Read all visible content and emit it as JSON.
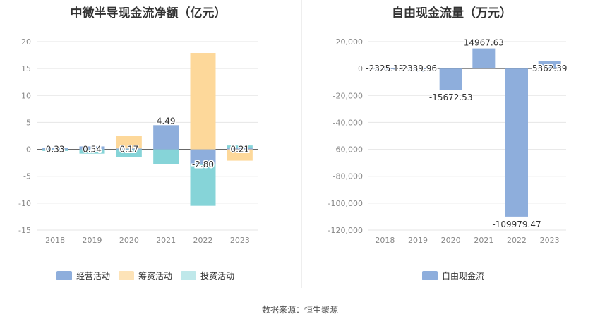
{
  "source_text": "数据来源：恒生聚源",
  "chart_data": [
    {
      "type": "bar",
      "stacked": true,
      "title": "中微半导现金流净额（亿元）",
      "categories": [
        "2018",
        "2019",
        "2020",
        "2021",
        "2022",
        "2023"
      ],
      "ylim": [
        -15,
        20
      ],
      "yticks": [
        -15,
        -10,
        -5,
        0,
        5,
        10,
        15,
        20
      ],
      "grid": true,
      "legend_position": "bottom",
      "series": [
        {
          "name": "经营活动",
          "color": "#8eaedc",
          "values": [
            0.33,
            0.54,
            0.17,
            4.49,
            -2.8,
            0.21
          ]
        },
        {
          "name": "筹资活动",
          "color": "#fdd89a",
          "values": [
            0.0,
            0.0,
            2.3,
            0.0,
            17.9,
            -2.1
          ]
        },
        {
          "name": "投资活动",
          "color": "#86d4d8",
          "values": [
            -0.3,
            -0.8,
            -1.4,
            -2.8,
            -7.7,
            0.5
          ]
        }
      ],
      "data_labels": [
        "0.33",
        "0.54",
        "0.17",
        "4.49",
        "-2.80",
        "0.21"
      ]
    },
    {
      "type": "bar",
      "title": "自由现金流量（万元）",
      "categories": [
        "2018",
        "2019",
        "2020",
        "2021",
        "2022",
        "2023"
      ],
      "ylim": [
        -120000,
        20000
      ],
      "yticks": [
        -120000,
        -100000,
        -80000,
        -60000,
        -40000,
        -20000,
        0,
        20000
      ],
      "ytick_labels": [
        "-120,000",
        "-100,000",
        "-80,000",
        "-60,000",
        "-40,000",
        "-20,000",
        "0",
        "20,000"
      ],
      "grid": true,
      "legend_position": "bottom",
      "series": [
        {
          "name": "自由现金流",
          "color": "#8eaedc",
          "values": [
            -2325.13,
            -2339.96,
            -15672.53,
            14967.63,
            -109979.47,
            5362.39
          ]
        }
      ],
      "data_labels": [
        "-2325.13",
        "-2339.96",
        "-15672.53",
        "14967.63",
        "-109979.47",
        "5362.39"
      ]
    }
  ]
}
